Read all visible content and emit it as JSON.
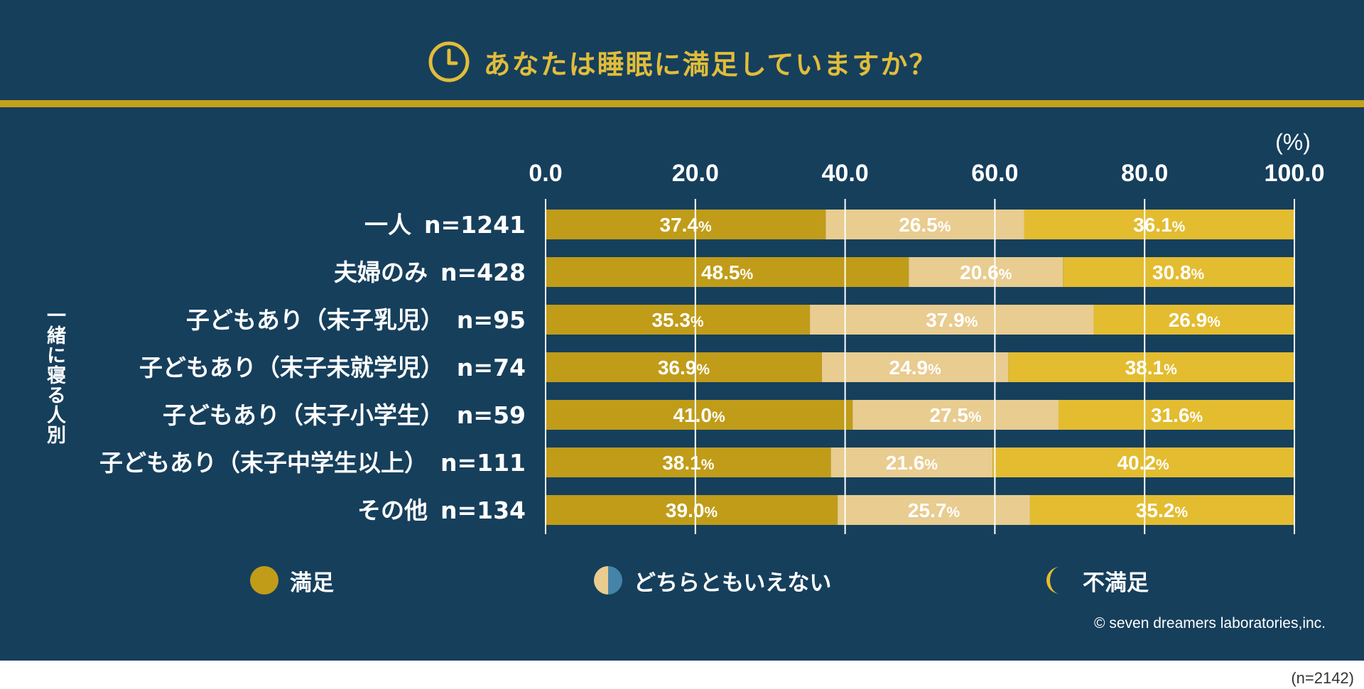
{
  "title": "あなたは睡眠に満足していますか？",
  "icons": {
    "title": "clock-icon",
    "satisfied": "full-circle-icon",
    "neutral": "half-circle-icon",
    "dissatisfied": "crescent-moon-icon"
  },
  "colors": {
    "background": "#163f5c",
    "satisfied": "#c09c19",
    "neutral": "#e8cc90",
    "dissatisfied": "#e3bc30",
    "title": "#e1bd3a",
    "neutral_half_right": "#4584a8"
  },
  "group_label": "一緒に寝る人別",
  "copyright": "© seven dreamers laboratories,inc.",
  "footnote": "(n=2142)",
  "legend": {
    "satisfied": "満足",
    "neutral": "どちらともいえない",
    "dissatisfied": "不満足"
  },
  "chart_data": {
    "type": "bar",
    "orientation": "horizontal",
    "stacked": true,
    "unit": "(%)",
    "xlim": [
      0,
      100
    ],
    "x_ticks": [
      "0.0",
      "20.0",
      "40.0",
      "60.0",
      "80.0",
      "100.0"
    ],
    "grid": true,
    "legend_position": "bottom",
    "categories": [
      {
        "label": "一人",
        "n": "n=1241"
      },
      {
        "label": "夫婦のみ",
        "n": "n=428"
      },
      {
        "label": "子どもあり（末子乳児）",
        "n": "n=95"
      },
      {
        "label": "子どもあり（末子未就学児）",
        "n": "n=74"
      },
      {
        "label": "子どもあり（末子小学生）",
        "n": "n=59"
      },
      {
        "label": "子どもあり（末子中学生以上）",
        "n": "n=111"
      },
      {
        "label": "その他",
        "n": "n=134"
      }
    ],
    "series": [
      {
        "name": "満足",
        "values": [
          37.4,
          48.5,
          35.3,
          36.9,
          41.0,
          38.1,
          39.0
        ]
      },
      {
        "name": "どちらともいえない",
        "values": [
          26.5,
          20.6,
          37.9,
          24.9,
          27.5,
          21.6,
          25.7
        ]
      },
      {
        "name": "不満足",
        "values": [
          36.1,
          30.8,
          26.9,
          38.1,
          31.6,
          40.2,
          35.2
        ]
      }
    ]
  }
}
